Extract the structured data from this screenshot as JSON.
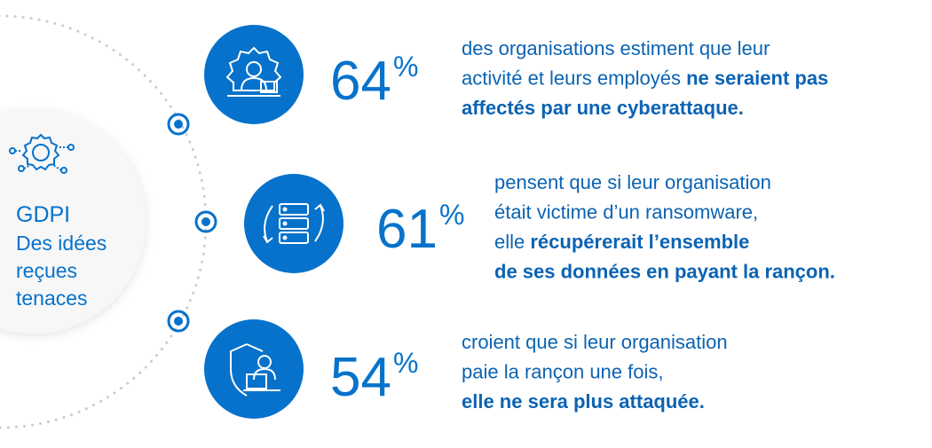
{
  "sidebar": {
    "title": "GDPI",
    "subtitle_lines": [
      "Des idées",
      "reçues",
      "tenaces"
    ]
  },
  "items": [
    {
      "stat_value": "64",
      "stat_unit": "%",
      "lines": [
        [
          {
            "text": "des organisations estiment que leur",
            "bold": false
          }
        ],
        [
          {
            "text": "activité et leurs employés ",
            "bold": false
          },
          {
            "text": "ne seraient pas",
            "bold": true
          }
        ],
        [
          {
            "text": "affectés par une cyberattaque.",
            "bold": true
          }
        ]
      ]
    },
    {
      "stat_value": "61",
      "stat_unit": "%",
      "lines": [
        [
          {
            "text": "pensent que si leur organisation",
            "bold": false
          }
        ],
        [
          {
            "text": "était victime d’un ransomware,",
            "bold": false
          }
        ],
        [
          {
            "text": "elle ",
            "bold": false
          },
          {
            "text": "récupérerait l’ensemble",
            "bold": true
          }
        ],
        [
          {
            "text": "de ses données en payant la rançon.",
            "bold": true
          }
        ]
      ]
    },
    {
      "stat_value": "54",
      "stat_unit": "%",
      "lines": [
        [
          {
            "text": "croient que si leur organisation",
            "bold": false
          }
        ],
        [
          {
            "text": "paie la rançon une fois,",
            "bold": false
          }
        ],
        [
          {
            "text": "elle ne sera plus attaquée.",
            "bold": true
          }
        ]
      ]
    }
  ]
}
